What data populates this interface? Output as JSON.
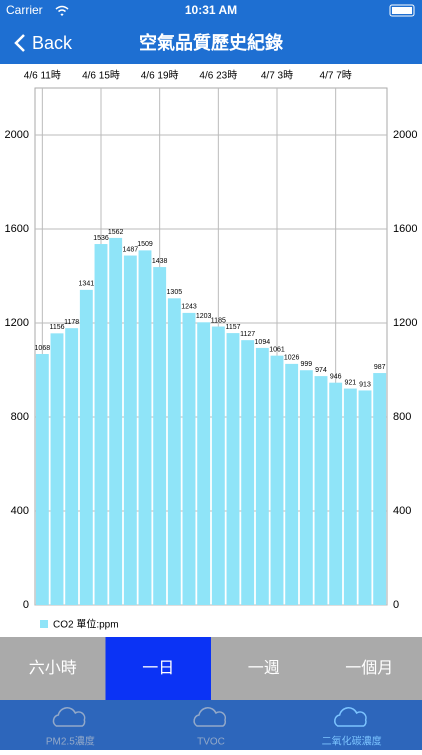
{
  "status_bar": {
    "carrier": "Carrier",
    "time": "10:31 AM"
  },
  "nav": {
    "back": "Back",
    "title": "空氣品質歷史紀錄"
  },
  "chart_data": {
    "type": "bar",
    "categories": [
      "4/6 11時",
      null,
      null,
      null,
      "4/6 15時",
      null,
      null,
      null,
      "4/6 19時",
      null,
      null,
      null,
      "4/6 23時",
      null,
      null,
      null,
      "4/7 3時",
      null,
      null,
      null,
      "4/7 7時",
      null,
      null,
      null
    ],
    "series": [
      {
        "name": "CO2 單位:ppm",
        "color": "#8fe4f8",
        "values": [
          1068,
          1156,
          1178,
          1341,
          1536,
          1562,
          1487,
          1509,
          1438,
          1305,
          1243,
          1203,
          1185,
          1157,
          1127,
          1094,
          1061,
          1026,
          999,
          974,
          946,
          921,
          913,
          987
        ]
      }
    ],
    "ylim": [
      0,
      2200
    ],
    "yticks": [
      0,
      400,
      800,
      1200,
      1600,
      2000
    ],
    "grid": true
  },
  "segments": {
    "items": [
      "六小時",
      "一日",
      "一週",
      "一個月"
    ],
    "selected": 1
  },
  "tabs": {
    "items": [
      "PM2.5濃度",
      "TVOC",
      "二氧化碳濃度"
    ],
    "selected": 2
  }
}
